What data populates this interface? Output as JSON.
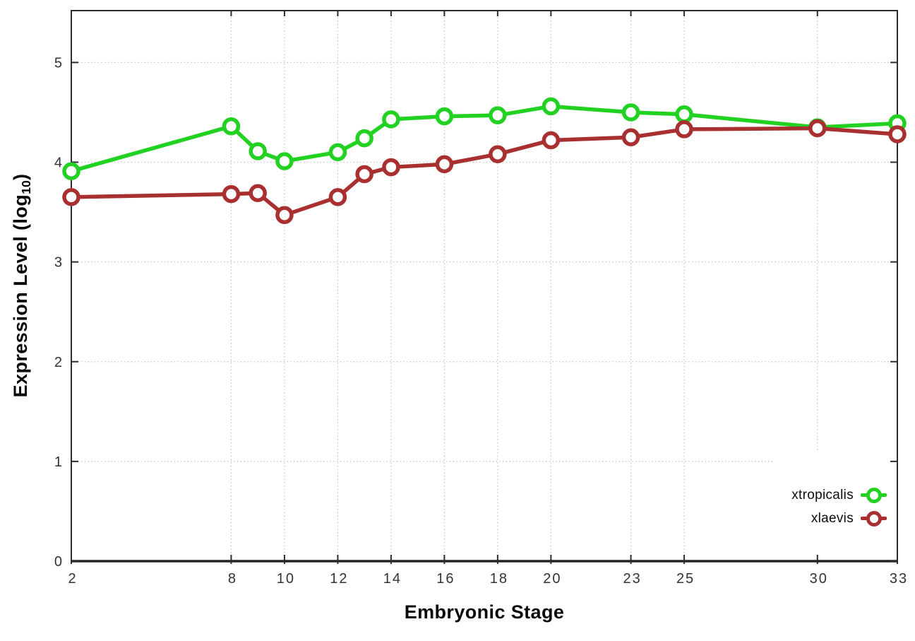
{
  "chart_data": {
    "type": "line",
    "x": [
      2,
      8,
      9,
      10,
      12,
      13,
      14,
      16,
      18,
      20,
      23,
      25,
      30,
      33
    ],
    "series": [
      {
        "name": "xtropicalis",
        "color": "#22d122",
        "marker": "open-circle",
        "values": [
          3.91,
          4.36,
          4.11,
          4.01,
          4.1,
          4.24,
          4.43,
          4.46,
          4.47,
          4.56,
          4.5,
          4.48,
          4.35,
          4.39
        ]
      },
      {
        "name": "xlaevis",
        "color": "#a93030",
        "marker": "open-circle",
        "values": [
          3.65,
          3.68,
          3.69,
          3.47,
          3.65,
          3.88,
          3.95,
          3.98,
          4.08,
          4.22,
          4.25,
          4.33,
          4.34,
          4.28
        ]
      }
    ],
    "xlabel": "Embryonic Stage",
    "ylabel": "Expression Level (log10)",
    "ylabel_parts": {
      "prefix": "Expression Level (log",
      "sub": "10",
      "suffix": ")"
    },
    "xticks": [
      2,
      8,
      10,
      12,
      14,
      16,
      18,
      20,
      23,
      25,
      30,
      33
    ],
    "yticks": [
      0,
      1,
      2,
      3,
      4,
      5
    ],
    "xlim": [
      2,
      33
    ],
    "ylim": [
      0,
      5.52
    ],
    "grid": true,
    "grid_style": "dotted",
    "legend_position": "bottom-right",
    "background": "#ffffff",
    "axis_color": "#2d2d2d",
    "grid_color": "#c3c3c3",
    "tick_label_color": "#333333"
  }
}
